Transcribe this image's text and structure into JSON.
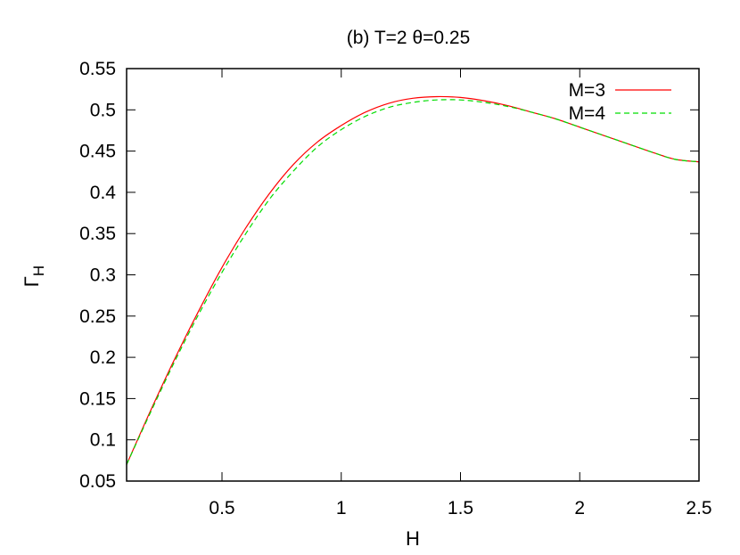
{
  "chart_data": {
    "type": "line",
    "title": "(b) T=2 θ=0.25",
    "xlabel": "H",
    "ylabel_main": "Γ",
    "ylabel_sub": "H",
    "xlim": [
      0.1,
      2.5
    ],
    "ylim": [
      0.05,
      0.55
    ],
    "x_ticks": [
      0.5,
      1,
      1.5,
      2,
      2.5
    ],
    "x_tick_labels": [
      "0.5",
      "1",
      "1.5",
      "2",
      "2.5"
    ],
    "y_ticks": [
      0.05,
      0.1,
      0.15,
      0.2,
      0.25,
      0.3,
      0.35,
      0.4,
      0.45,
      0.5,
      0.55
    ],
    "y_tick_labels": [
      "0.05",
      "0.1",
      "0.15",
      "0.2",
      "0.25",
      "0.3",
      "0.35",
      "0.4",
      "0.45",
      "0.5",
      "0.55"
    ],
    "grid": false,
    "legend_position": "top-right",
    "series": [
      {
        "name": "M=3",
        "color": "#ff0000",
        "dash": "solid",
        "x": [
          0.1,
          0.2,
          0.3,
          0.4,
          0.5,
          0.6,
          0.7,
          0.8,
          0.9,
          1.0,
          1.1,
          1.2,
          1.3,
          1.4,
          1.5,
          1.6,
          1.7,
          1.8,
          1.9,
          2.0,
          2.1,
          2.2,
          2.3,
          2.4,
          2.5
        ],
        "y": [
          0.07,
          0.135,
          0.197,
          0.255,
          0.309,
          0.357,
          0.399,
          0.434,
          0.461,
          0.481,
          0.497,
          0.508,
          0.514,
          0.516,
          0.515,
          0.511,
          0.505,
          0.497,
          0.489,
          0.479,
          0.469,
          0.459,
          0.449,
          0.44,
          0.437
        ]
      },
      {
        "name": "M=4",
        "color": "#00dd00",
        "dash": "dashed",
        "x": [
          0.1,
          0.2,
          0.3,
          0.4,
          0.5,
          0.6,
          0.7,
          0.8,
          0.9,
          1.0,
          1.1,
          1.2,
          1.3,
          1.4,
          1.5,
          1.6,
          1.7,
          1.8,
          1.9,
          2.0,
          2.1,
          2.2,
          2.3,
          2.4,
          2.5
        ],
        "y": [
          0.07,
          0.133,
          0.194,
          0.251,
          0.303,
          0.35,
          0.392,
          0.426,
          0.455,
          0.476,
          0.492,
          0.503,
          0.509,
          0.512,
          0.512,
          0.509,
          0.504,
          0.497,
          0.489,
          0.479,
          0.469,
          0.459,
          0.449,
          0.44,
          0.437
        ]
      }
    ]
  }
}
